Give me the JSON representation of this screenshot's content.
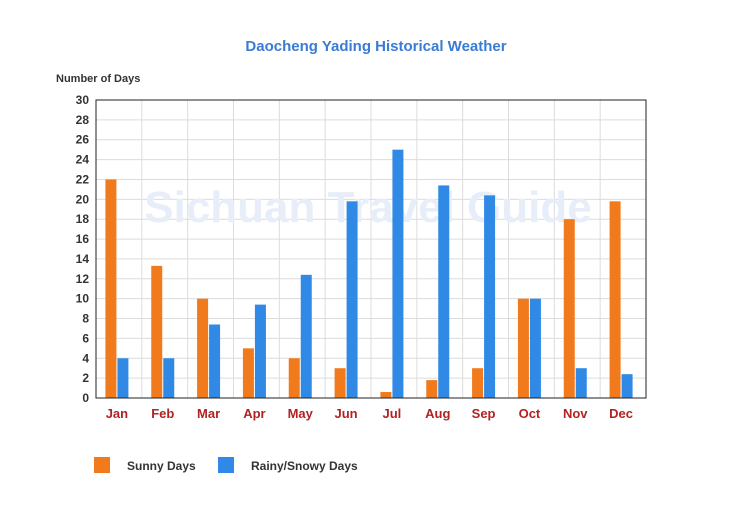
{
  "chart_data": {
    "type": "bar",
    "title": "Daocheng Yading Historical Weather",
    "ylabel": "Number of Days",
    "xlabel": "",
    "categories": [
      "Jan",
      "Feb",
      "Mar",
      "Apr",
      "May",
      "Jun",
      "Jul",
      "Aug",
      "Sep",
      "Oct",
      "Nov",
      "Dec"
    ],
    "series": [
      {
        "name": "Sunny Days",
        "color": "#f07a1c",
        "values": [
          22,
          13.3,
          10,
          5,
          4,
          3,
          0.6,
          1.8,
          3,
          10,
          18,
          19.8
        ]
      },
      {
        "name": "Rainy/Snowy Days",
        "color": "#2f89e5",
        "values": [
          4,
          4,
          7.4,
          9.4,
          12.4,
          19.8,
          25,
          21.4,
          20.4,
          10,
          3,
          2.4
        ]
      }
    ],
    "ylim": [
      0,
      30
    ],
    "yticks": [
      0,
      2,
      4,
      6,
      8,
      10,
      12,
      14,
      16,
      18,
      20,
      22,
      24,
      26,
      28,
      30
    ],
    "grid": true,
    "legend_position": "bottom-left",
    "watermark": "Sichuan Travel Guide",
    "title_color": "#3a7bd5",
    "xtick_color": "#b22222"
  }
}
